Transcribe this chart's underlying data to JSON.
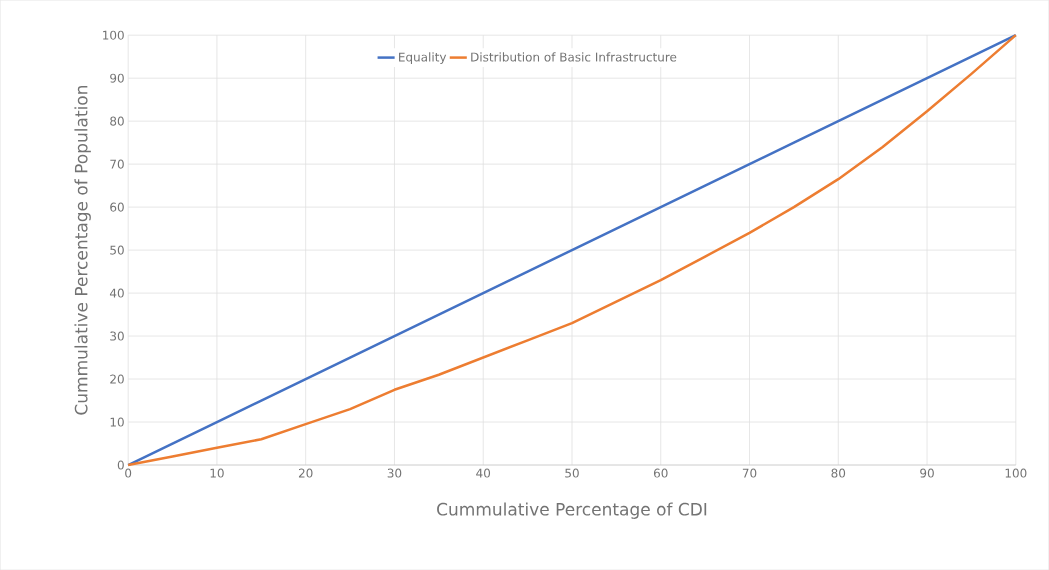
{
  "chart_data": {
    "type": "line",
    "xlabel": "Cummulative Percentage of CDI",
    "ylabel": "Cummulative Percentage of Population",
    "x": [
      0,
      5,
      10,
      15,
      20,
      25,
      30,
      35,
      40,
      45,
      50,
      55,
      60,
      65,
      70,
      75,
      80,
      85,
      90,
      95,
      100
    ],
    "series": [
      {
        "name": "Equality",
        "color": "#4472c4",
        "values": [
          0,
          5,
          10,
          15,
          20,
          25,
          30,
          35,
          40,
          45,
          50,
          55,
          60,
          65,
          70,
          75,
          80,
          85,
          90,
          95,
          100
        ]
      },
      {
        "name": "Distribution of Basic Infrastructure",
        "color": "#ed7d31",
        "values": [
          0,
          2,
          4,
          6,
          9.5,
          13,
          17.5,
          21,
          25,
          29,
          33,
          38,
          43,
          48.5,
          54,
          60,
          66.5,
          74,
          82.3,
          91,
          100
        ]
      }
    ],
    "xlim": [
      0,
      100
    ],
    "ylim": [
      0,
      100
    ],
    "xticks": [
      0,
      10,
      20,
      30,
      40,
      50,
      60,
      70,
      80,
      90,
      100
    ],
    "yticks": [
      0,
      10,
      20,
      30,
      40,
      50,
      60,
      70,
      80,
      90,
      100
    ],
    "grid": true,
    "legend": "top",
    "marker": "none",
    "line_style": "solid"
  }
}
